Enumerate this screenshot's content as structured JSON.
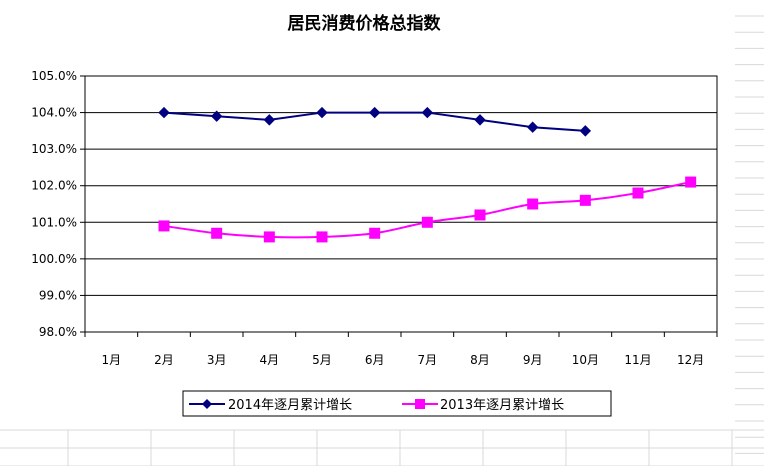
{
  "chart_data": {
    "type": "line",
    "title": "居民消费价格总指数",
    "xlabel": "",
    "ylabel": "",
    "categories": [
      "1月",
      "2月",
      "3月",
      "4月",
      "5月",
      "6月",
      "7月",
      "8月",
      "9月",
      "10月",
      "11月",
      "12月"
    ],
    "ylim": [
      98,
      105
    ],
    "yticks": [
      "98.0%",
      "99.0%",
      "100.0%",
      "101.0%",
      "102.0%",
      "103.0%",
      "104.0%",
      "105.0%"
    ],
    "grid": true,
    "legend_position": "bottom",
    "series": [
      {
        "name": "2014年逐月累计增长",
        "color": "#000080",
        "marker": "diamond",
        "smooth": false,
        "values": [
          null,
          104.0,
          103.9,
          103.8,
          104.0,
          104.0,
          104.0,
          103.8,
          103.6,
          103.5,
          null,
          null
        ]
      },
      {
        "name": "2013年逐月累计增长",
        "color": "#ff00ff",
        "marker": "square",
        "smooth": true,
        "values": [
          null,
          100.9,
          100.7,
          100.6,
          100.6,
          100.7,
          101.0,
          101.2,
          101.5,
          101.6,
          101.8,
          102.1
        ]
      }
    ]
  }
}
